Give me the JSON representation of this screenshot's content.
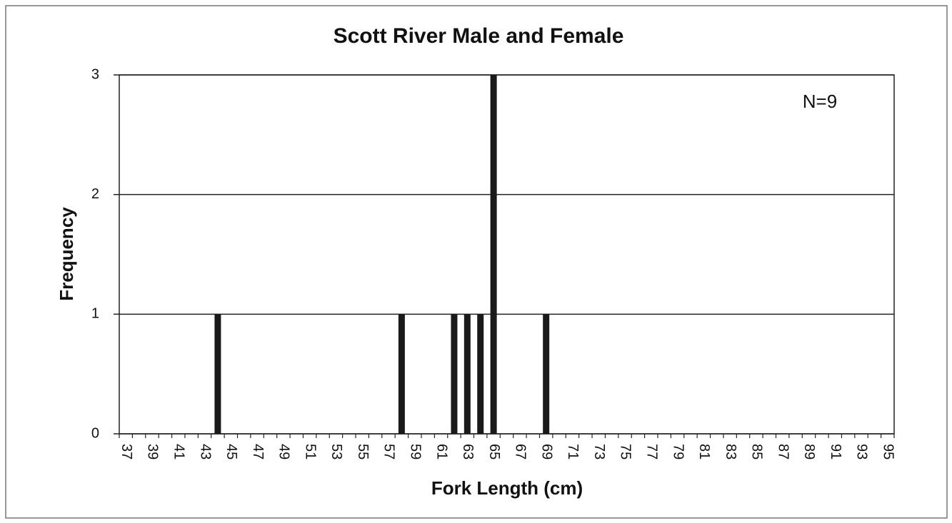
{
  "chart_data": {
    "type": "bar",
    "title": "Scott River Male and Female",
    "x_label": "Fork Length (cm)",
    "y_label": "Frequency",
    "annotation": "N=9",
    "categories": [
      "37",
      null,
      "39",
      null,
      "41",
      null,
      "43",
      null,
      "45",
      null,
      "47",
      null,
      "49",
      null,
      "51",
      null,
      "53",
      null,
      "55",
      null,
      "57",
      null,
      "59",
      null,
      "61",
      null,
      "63",
      null,
      "65",
      null,
      "67",
      null,
      "69",
      null,
      "71",
      null,
      "73",
      null,
      "75",
      null,
      "77",
      null,
      "79",
      null,
      "81",
      null,
      "83",
      null,
      "85",
      null,
      "87",
      null,
      "89",
      null,
      "91",
      null,
      "93",
      null,
      "95"
    ],
    "values": [
      0,
      0,
      0,
      0,
      0,
      0,
      0,
      1,
      0,
      0,
      0,
      0,
      0,
      0,
      0,
      0,
      0,
      0,
      0,
      0,
      0,
      1,
      0,
      0,
      0,
      1,
      1,
      1,
      3,
      0,
      0,
      0,
      1,
      0,
      0,
      0,
      0,
      0,
      0,
      0,
      0,
      0,
      0,
      0,
      0,
      0,
      0,
      0,
      0,
      0,
      0,
      0,
      0,
      0,
      0,
      0,
      0,
      0,
      0
    ],
    "color": "#1a1a1a",
    "ylim": [
      0,
      3
    ],
    "yticks": [
      0,
      1,
      2,
      3
    ],
    "grid": true
  }
}
